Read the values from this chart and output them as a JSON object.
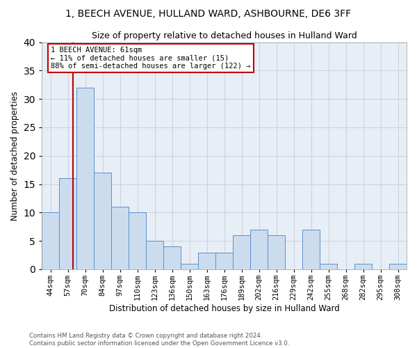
{
  "title": "1, BEECH AVENUE, HULLAND WARD, ASHBOURNE, DE6 3FF",
  "subtitle": "Size of property relative to detached houses in Hulland Ward",
  "xlabel": "Distribution of detached houses by size in Hulland Ward",
  "ylabel": "Number of detached properties",
  "footer_line1": "Contains HM Land Registry data © Crown copyright and database right 2024.",
  "footer_line2": "Contains public sector information licensed under the Open Government Licence v3.0.",
  "categories": [
    "44sqm",
    "57sqm",
    "70sqm",
    "84sqm",
    "97sqm",
    "110sqm",
    "123sqm",
    "136sqm",
    "150sqm",
    "163sqm",
    "176sqm",
    "189sqm",
    "202sqm",
    "216sqm",
    "229sqm",
    "242sqm",
    "255sqm",
    "268sqm",
    "282sqm",
    "295sqm",
    "308sqm"
  ],
  "values": [
    10,
    16,
    32,
    17,
    11,
    10,
    5,
    4,
    1,
    3,
    3,
    6,
    7,
    6,
    0,
    7,
    1,
    0,
    1,
    0,
    1
  ],
  "bar_color": "#ccdcef",
  "bar_edge_color": "#5b8fc9",
  "annotation_box_text": "1 BEECH AVENUE: 61sqm\n← 11% of detached houses are smaller (15)\n88% of semi-detached houses are larger (122) →",
  "annotation_line_color": "#c00000",
  "annotation_box_color": "#ffffff",
  "annotation_box_edge_color": "#c00000",
  "red_line_bar_index": 1.3,
  "ylim": [
    0,
    40
  ],
  "yticks": [
    0,
    5,
    10,
    15,
    20,
    25,
    30,
    35,
    40
  ],
  "grid_color": "#c8d4e4",
  "background_color": "#e8eef6"
}
